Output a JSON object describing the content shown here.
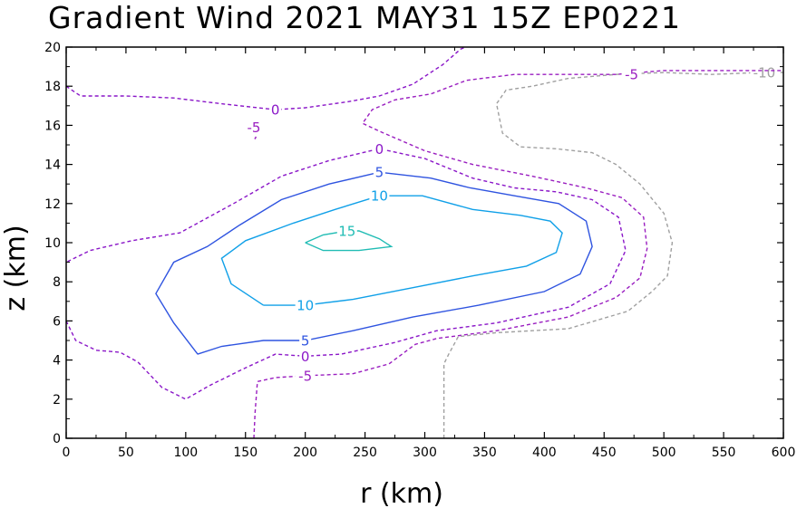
{
  "chart_data": {
    "type": "contour",
    "title": "Gradient Wind 2021 MAY31 15Z   EP0221",
    "xlabel": "r (km)",
    "ylabel": "z (km)",
    "xlim": [
      0,
      600
    ],
    "ylim": [
      0,
      20
    ],
    "xticks": [
      0,
      50,
      100,
      150,
      200,
      250,
      300,
      350,
      400,
      450,
      500,
      550,
      600
    ],
    "yticks": [
      0,
      2,
      4,
      6,
      8,
      10,
      12,
      14,
      16,
      18,
      20
    ],
    "xtick_labels": [
      "0",
      "50",
      "100",
      "150",
      "200",
      "250",
      "300",
      "350",
      "400",
      "450",
      "500",
      "550",
      "600"
    ],
    "ytick_labels": [
      "0",
      "2",
      "4",
      "6",
      "8",
      "10",
      "12",
      "14",
      "16",
      "18",
      "20"
    ],
    "grid": false,
    "contours": [
      {
        "level": -10,
        "label": "-10",
        "color": "#a0a0a0",
        "dashed": true,
        "lines": [
          [
            [
              316,
              0
            ],
            [
              316,
              3.8
            ],
            [
              320,
              4.3
            ],
            [
              328,
              5.2
            ],
            [
              360,
              5.4
            ],
            [
              420,
              5.6
            ],
            [
              470,
              6.5
            ],
            [
              490,
              7.5
            ],
            [
              503,
              8.3
            ],
            [
              507,
              10
            ],
            [
              500,
              11.5
            ],
            [
              480,
              13
            ],
            [
              460,
              14
            ],
            [
              440,
              14.6
            ],
            [
              410,
              14.8
            ],
            [
              380,
              14.9
            ],
            [
              365,
              15.6
            ],
            [
              360,
              17.1
            ],
            [
              368,
              17.8
            ],
            [
              390,
              18
            ],
            [
              420,
              18.4
            ],
            [
              460,
              18.6
            ],
            [
              500,
              18.7
            ],
            [
              540,
              18.6
            ],
            [
              580,
              18.7
            ],
            [
              600,
              18.7
            ]
          ]
        ],
        "labels": [
          {
            "x": 584,
            "y": 18.7
          }
        ]
      },
      {
        "level": -5,
        "label": "-5",
        "color": "#9a1ec0",
        "dashed": true,
        "lines": [
          [
            [
              157,
              0
            ],
            [
              158,
              1.3
            ],
            [
              160,
              2.9
            ],
            [
              175,
              3.1
            ],
            [
              200,
              3.2
            ],
            [
              240,
              3.3
            ],
            [
              270,
              3.8
            ],
            [
              292,
              4.8
            ],
            [
              310,
              5.1
            ],
            [
              360,
              5.5
            ],
            [
              420,
              6.2
            ],
            [
              460,
              7.2
            ],
            [
              480,
              8.2
            ],
            [
              486,
              9.7
            ],
            [
              483,
              11.3
            ],
            [
              465,
              12.3
            ],
            [
              435,
              12.8
            ],
            [
              390,
              13.4
            ],
            [
              340,
              14.0
            ],
            [
              300,
              14.7
            ],
            [
              262,
              15.7
            ],
            [
              248,
              16.1
            ],
            [
              256,
              16.8
            ],
            [
              275,
              17.3
            ],
            [
              305,
              17.6
            ],
            [
              335,
              18.3
            ],
            [
              375,
              18.6
            ],
            [
              420,
              18.6
            ],
            [
              460,
              18.6
            ],
            [
              500,
              18.8
            ],
            [
              550,
              18.8
            ],
            [
              600,
              18.8
            ]
          ],
          [
            [
              157,
              16.0
            ],
            [
              158,
              15.3
            ],
            [
              160,
              15.6
            ]
          ]
        ],
        "labels": [
          {
            "x": 200,
            "y": 3.2
          },
          {
            "x": 473,
            "y": 18.6
          },
          {
            "x": 157,
            "y": 15.9
          }
        ]
      },
      {
        "level": 0,
        "label": "0",
        "color": "#8a16c8",
        "dashed": true,
        "lines": [
          [
            [
              0,
              6.0
            ],
            [
              8,
              5.0
            ],
            [
              25,
              4.5
            ],
            [
              45,
              4.4
            ],
            [
              60,
              3.9
            ],
            [
              80,
              2.6
            ],
            [
              100,
              2.0
            ],
            [
              120,
              2.7
            ],
            [
              150,
              3.6
            ],
            [
              175,
              4.3
            ],
            [
              200,
              4.2
            ],
            [
              230,
              4.3
            ],
            [
              275,
              4.9
            ],
            [
              310,
              5.5
            ],
            [
              360,
              5.9
            ],
            [
              420,
              6.7
            ],
            [
              455,
              7.9
            ],
            [
              468,
              9.6
            ],
            [
              462,
              11.3
            ],
            [
              440,
              12.2
            ],
            [
              410,
              12.6
            ],
            [
              375,
              12.8
            ],
            [
              340,
              13.3
            ],
            [
              300,
              14.3
            ],
            [
              262,
              14.8
            ],
            [
              220,
              14.2
            ],
            [
              180,
              13.4
            ],
            [
              140,
              12.0
            ],
            [
              95,
              10.5
            ],
            [
              55,
              10.1
            ],
            [
              20,
              9.6
            ],
            [
              0,
              9.0
            ]
          ],
          [
            [
              0,
              18.0
            ],
            [
              12,
              17.5
            ],
            [
              50,
              17.5
            ],
            [
              90,
              17.4
            ],
            [
              130,
              17.1
            ],
            [
              175,
              16.8
            ],
            [
              200,
              16.9
            ],
            [
              235,
              17.2
            ],
            [
              262,
              17.5
            ],
            [
              290,
              18.1
            ],
            [
              315,
              19.1
            ],
            [
              330,
              19.9
            ],
            [
              334,
              20.0
            ]
          ]
        ],
        "labels": [
          {
            "x": 200,
            "y": 4.2
          },
          {
            "x": 262,
            "y": 14.8
          },
          {
            "x": 175,
            "y": 16.8
          }
        ]
      },
      {
        "level": 5,
        "label": "5",
        "color": "#2f54e0",
        "dashed": false,
        "lines": [
          [
            [
              110,
              4.3
            ],
            [
              130,
              4.7
            ],
            [
              165,
              5.0
            ],
            [
              200,
              5.0
            ],
            [
              240,
              5.5
            ],
            [
              290,
              6.2
            ],
            [
              345,
              6.8
            ],
            [
              400,
              7.5
            ],
            [
              430,
              8.4
            ],
            [
              440,
              9.8
            ],
            [
              435,
              11.1
            ],
            [
              412,
              12.0
            ],
            [
              375,
              12.4
            ],
            [
              338,
              12.8
            ],
            [
              305,
              13.3
            ],
            [
              262,
              13.6
            ],
            [
              220,
              13.0
            ],
            [
              180,
              12.2
            ],
            [
              145,
              10.9
            ],
            [
              118,
              9.8
            ],
            [
              90,
              9.0
            ],
            [
              75,
              7.4
            ],
            [
              90,
              5.9
            ],
            [
              110,
              4.3
            ]
          ]
        ],
        "labels": [
          {
            "x": 200,
            "y": 5.0
          },
          {
            "x": 262,
            "y": 13.6
          }
        ]
      },
      {
        "level": 10,
        "label": "10",
        "color": "#10a0e8",
        "dashed": false,
        "lines": [
          [
            [
              165,
              6.8
            ],
            [
              200,
              6.8
            ],
            [
              240,
              7.1
            ],
            [
              290,
              7.7
            ],
            [
              340,
              8.3
            ],
            [
              385,
              8.8
            ],
            [
              410,
              9.5
            ],
            [
              415,
              10.5
            ],
            [
              405,
              11.1
            ],
            [
              380,
              11.4
            ],
            [
              340,
              11.7
            ],
            [
              298,
              12.4
            ],
            [
              262,
              12.4
            ],
            [
              225,
              11.7
            ],
            [
              190,
              11.0
            ],
            [
              150,
              10.1
            ],
            [
              130,
              9.2
            ],
            [
              138,
              7.9
            ],
            [
              165,
              6.8
            ]
          ]
        ],
        "labels": [
          {
            "x": 200,
            "y": 6.8
          },
          {
            "x": 262,
            "y": 12.4
          }
        ]
      },
      {
        "level": 15,
        "label": "15",
        "color": "#20bcb4",
        "dashed": false,
        "lines": [
          [
            [
              200,
              10.0
            ],
            [
              215,
              9.6
            ],
            [
              245,
              9.6
            ],
            [
              272,
              9.8
            ],
            [
              262,
              10.2
            ],
            [
              245,
              10.6
            ],
            [
              235,
              10.6
            ],
            [
              215,
              10.4
            ],
            [
              200,
              10.0
            ]
          ]
        ],
        "labels": [
          {
            "x": 235,
            "y": 10.6
          }
        ]
      }
    ]
  }
}
